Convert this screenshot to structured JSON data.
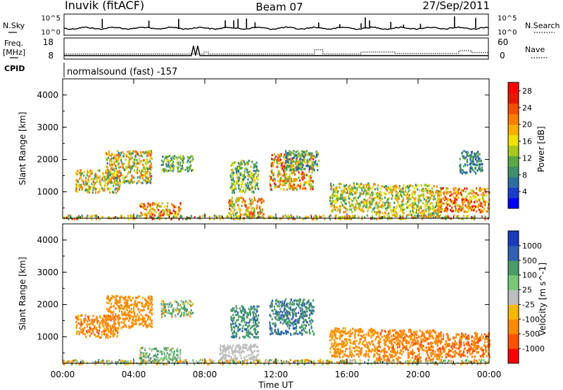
{
  "header": {
    "title": "Inuvik (fitACF)",
    "beam": "Beam 07",
    "date": "27/Sep/2011"
  },
  "top_panels": {
    "nsky_label": "N.Sky",
    "nsky_ticks": [
      "10^5",
      "10^0"
    ],
    "nsearch_label": "N.Search",
    "nsearch_ticks": [
      "10^5",
      "10^0"
    ],
    "freq_label_1": "Freq.",
    "freq_label_2": "[MHz]",
    "freq_ticks": [
      "18",
      "8"
    ],
    "nave_label": "Nave",
    "nave_ticks": [
      "60",
      "0"
    ],
    "cpid_label": "CPID",
    "cpid_text": "normalsound (fast) -157"
  },
  "chart_data": [
    {
      "type": "heatmap",
      "name": "power",
      "ylabel": "Slant Range [km]",
      "xlabel": "",
      "x_ticks": [
        "00:00",
        "04:00",
        "08:00",
        "12:00",
        "16:00",
        "20:00",
        "00:00"
      ],
      "xlim_hours": [
        0,
        24
      ],
      "ylim": [
        180,
        4500
      ],
      "y_ticks": [
        1000,
        2000,
        3000,
        4000
      ],
      "colorbar_label": "Power [dB]",
      "colorbar_ticks": [
        "28",
        "24",
        "20",
        "16",
        "12",
        "8",
        "4"
      ],
      "colorbar_range": [
        0,
        30
      ],
      "colors": [
        "#0000ff",
        "#1a3ec8",
        "#2e6e9e",
        "#3f8f6a",
        "#5aa845",
        "#a8c820",
        "#f0e000",
        "#f8b000",
        "#f88000",
        "#f05000",
        "#e81800",
        "#ff0000"
      ],
      "echo_regions": [
        {
          "t": [
            0.0,
            24.0
          ],
          "r": [
            180,
            300
          ],
          "v": [
            8,
            26
          ]
        },
        {
          "t": [
            0.7,
            3.2
          ],
          "r": [
            1000,
            1700
          ],
          "v": [
            8,
            24
          ]
        },
        {
          "t": [
            2.4,
            5.0
          ],
          "r": [
            1300,
            2300
          ],
          "v": [
            6,
            24
          ]
        },
        {
          "t": [
            4.3,
            6.6
          ],
          "r": [
            300,
            700
          ],
          "v": [
            12,
            28
          ]
        },
        {
          "t": [
            5.5,
            7.3
          ],
          "r": [
            1650,
            2150
          ],
          "v": [
            6,
            16
          ]
        },
        {
          "t": [
            9.3,
            11.3
          ],
          "r": [
            300,
            850
          ],
          "v": [
            10,
            26
          ]
        },
        {
          "t": [
            9.4,
            11.0
          ],
          "r": [
            1000,
            2000
          ],
          "v": [
            6,
            18
          ]
        },
        {
          "t": [
            11.6,
            14.1
          ],
          "r": [
            1100,
            2200
          ],
          "v": [
            10,
            28
          ]
        },
        {
          "t": [
            12.5,
            14.4
          ],
          "r": [
            1700,
            2300
          ],
          "v": [
            4,
            14
          ]
        },
        {
          "t": [
            15.0,
            17.6
          ],
          "r": [
            400,
            1300
          ],
          "v": [
            8,
            22
          ]
        },
        {
          "t": [
            17.6,
            21.3
          ],
          "r": [
            300,
            1250
          ],
          "v": [
            8,
            22
          ]
        },
        {
          "t": [
            21.0,
            24.0
          ],
          "r": [
            400,
            1150
          ],
          "v": [
            14,
            28
          ]
        },
        {
          "t": [
            22.3,
            23.6
          ],
          "r": [
            1600,
            2300
          ],
          "v": [
            4,
            12
          ]
        }
      ]
    },
    {
      "type": "heatmap",
      "name": "velocity",
      "ylabel": "Slant Range [km]",
      "xlabel": "Time UT",
      "x_ticks": [
        "00:00",
        "04:00",
        "08:00",
        "12:00",
        "16:00",
        "20:00",
        "00:00"
      ],
      "xlim_hours": [
        0,
        24
      ],
      "ylim": [
        180,
        4500
      ],
      "y_ticks": [
        1000,
        2000,
        3000,
        4000
      ],
      "colorbar_label": "Velocity [m s^-1]",
      "colorbar_ticks": [
        "1000",
        "500",
        "100",
        "25",
        "-25",
        "-100",
        "-500",
        "-1000"
      ],
      "colors": [
        "#ff0000",
        "#ff5000",
        "#ff8a00",
        "#f5b800",
        "#bebebe",
        "#78c878",
        "#4a9a6a",
        "#3060b0",
        "#1a3ab8"
      ],
      "echo_regions": [
        {
          "t": [
            0.0,
            24.0
          ],
          "r": [
            180,
            320
          ],
          "v": [
            -200,
            200
          ]
        },
        {
          "t": [
            0.7,
            3.2
          ],
          "r": [
            1000,
            1700
          ],
          "v": [
            -600,
            0
          ]
        },
        {
          "t": [
            2.4,
            5.0
          ],
          "r": [
            1300,
            2300
          ],
          "v": [
            -500,
            -80
          ]
        },
        {
          "t": [
            4.3,
            6.6
          ],
          "r": [
            300,
            700
          ],
          "v": [
            -40,
            200
          ]
        },
        {
          "t": [
            5.5,
            7.3
          ],
          "r": [
            1650,
            2150
          ],
          "v": [
            -150,
            300
          ]
        },
        {
          "t": [
            8.8,
            11.0
          ],
          "r": [
            300,
            800
          ],
          "v": [
            -20,
            20
          ]
        },
        {
          "t": [
            9.4,
            11.0
          ],
          "r": [
            1000,
            2000
          ],
          "v": [
            150,
            600
          ]
        },
        {
          "t": [
            11.6,
            14.1
          ],
          "r": [
            1100,
            2200
          ],
          "v": [
            150,
            700
          ]
        },
        {
          "t": [
            15.0,
            17.6
          ],
          "r": [
            400,
            1300
          ],
          "v": [
            -500,
            -40
          ]
        },
        {
          "t": [
            17.6,
            21.3
          ],
          "r": [
            300,
            1250
          ],
          "v": [
            -600,
            -100
          ]
        },
        {
          "t": [
            21.0,
            24.0
          ],
          "r": [
            400,
            1150
          ],
          "v": [
            -700,
            -200
          ]
        }
      ]
    }
  ]
}
